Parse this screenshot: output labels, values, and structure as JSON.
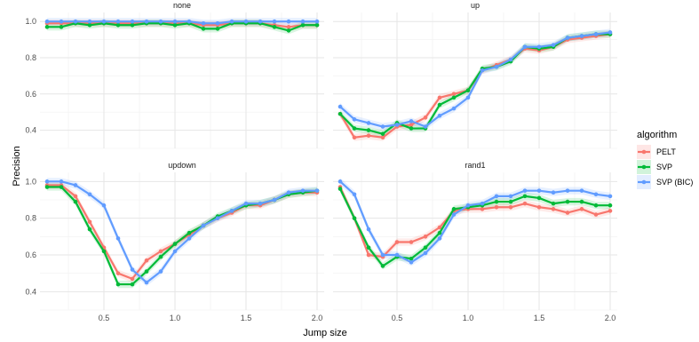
{
  "chart_data": {
    "type": "line",
    "xlabel": "Jump size",
    "ylabel": "Precision",
    "xlim": [
      0.05,
      2.05
    ],
    "x_ticks": [
      0.5,
      1.0,
      1.5,
      2.0
    ],
    "x_tick_labels": [
      "0.5",
      "1.0",
      "1.5",
      "2.0"
    ],
    "x": [
      0.1,
      0.2,
      0.3,
      0.4,
      0.5,
      0.6,
      0.7,
      0.8,
      0.9,
      1.0,
      1.1,
      1.2,
      1.3,
      1.4,
      1.5,
      1.6,
      1.7,
      1.8,
      1.9,
      2.0
    ],
    "grid": true,
    "legend": {
      "title": "algorithm",
      "position": "right",
      "entries": [
        {
          "name": "PELT",
          "color": "#f8766d"
        },
        {
          "name": "SVP",
          "color": "#00ba38"
        },
        {
          "name": "SVP (BIC)",
          "color": "#619cff"
        }
      ]
    },
    "panels": [
      {
        "title": "none",
        "ylim": [
          0.3,
          1.05
        ],
        "y_ticks": [
          0.4,
          0.6,
          0.8,
          1.0
        ],
        "y_tick_labels": [
          "0.4",
          "0.6",
          "0.8",
          "1.0"
        ],
        "series": [
          {
            "name": "PELT",
            "values": [
              0.99,
              0.99,
              0.99,
              0.99,
              0.99,
              0.99,
              0.99,
              0.99,
              0.99,
              0.99,
              0.99,
              0.98,
              0.98,
              0.99,
              0.99,
              0.99,
              0.98,
              0.97,
              0.98,
              0.98
            ]
          },
          {
            "name": "SVP",
            "values": [
              0.97,
              0.97,
              0.99,
              0.98,
              0.99,
              0.98,
              0.98,
              0.99,
              0.99,
              0.98,
              0.99,
              0.96,
              0.96,
              0.99,
              0.99,
              0.99,
              0.97,
              0.95,
              0.98,
              0.98
            ]
          },
          {
            "name": "SVP (BIC)",
            "values": [
              1.0,
              1.0,
              1.0,
              1.0,
              1.0,
              1.0,
              1.0,
              1.0,
              1.0,
              1.0,
              1.0,
              0.99,
              0.99,
              1.0,
              1.0,
              1.0,
              1.0,
              1.0,
              1.0,
              1.0
            ]
          }
        ]
      },
      {
        "title": "up",
        "ylim": [
          0.3,
          1.05
        ],
        "y_ticks": [
          0.4,
          0.6,
          0.8,
          1.0
        ],
        "y_tick_labels": [
          "0.4",
          "0.6",
          "0.8",
          "1.0"
        ],
        "series": [
          {
            "name": "PELT",
            "values": [
              0.49,
              0.36,
              0.37,
              0.36,
              0.42,
              0.43,
              0.47,
              0.58,
              0.6,
              0.62,
              0.73,
              0.76,
              0.79,
              0.85,
              0.84,
              0.86,
              0.9,
              0.91,
              0.92,
              0.93
            ]
          },
          {
            "name": "SVP",
            "values": [
              0.49,
              0.41,
              0.4,
              0.38,
              0.44,
              0.41,
              0.41,
              0.54,
              0.58,
              0.62,
              0.74,
              0.75,
              0.78,
              0.86,
              0.85,
              0.86,
              0.91,
              0.92,
              0.93,
              0.93
            ]
          },
          {
            "name": "SVP (BIC)",
            "values": [
              0.53,
              0.46,
              0.44,
              0.42,
              0.43,
              0.45,
              0.42,
              0.48,
              0.52,
              0.58,
              0.73,
              0.75,
              0.79,
              0.86,
              0.86,
              0.87,
              0.91,
              0.92,
              0.93,
              0.94
            ]
          }
        ]
      },
      {
        "title": "updown",
        "ylim": [
          0.3,
          1.05
        ],
        "y_ticks": [
          0.4,
          0.6,
          0.8,
          1.0
        ],
        "y_tick_labels": [
          "0.4",
          "0.6",
          "0.8",
          "1.0"
        ],
        "series": [
          {
            "name": "PELT",
            "values": [
              0.98,
              0.98,
              0.92,
              0.78,
              0.64,
              0.5,
              0.47,
              0.57,
              0.62,
              0.66,
              0.71,
              0.76,
              0.8,
              0.83,
              0.87,
              0.87,
              0.9,
              0.93,
              0.94,
              0.94
            ]
          },
          {
            "name": "SVP",
            "values": [
              0.97,
              0.97,
              0.89,
              0.74,
              0.62,
              0.44,
              0.44,
              0.51,
              0.59,
              0.66,
              0.72,
              0.76,
              0.81,
              0.84,
              0.87,
              0.88,
              0.9,
              0.93,
              0.94,
              0.95
            ]
          },
          {
            "name": "SVP (BIC)",
            "values": [
              1.0,
              1.0,
              0.98,
              0.93,
              0.87,
              0.69,
              0.52,
              0.45,
              0.51,
              0.62,
              0.69,
              0.76,
              0.8,
              0.84,
              0.88,
              0.88,
              0.9,
              0.94,
              0.95,
              0.95
            ]
          }
        ]
      },
      {
        "title": "rand1",
        "ylim": [
          0.3,
          1.05
        ],
        "y_ticks": [
          0.4,
          0.6,
          0.8,
          1.0
        ],
        "y_tick_labels": [
          "0.4",
          "0.6",
          "0.8",
          "1.0"
        ],
        "series": [
          {
            "name": "PELT",
            "values": [
              0.97,
              0.8,
              0.6,
              0.59,
              0.67,
              0.67,
              0.7,
              0.75,
              0.84,
              0.85,
              0.85,
              0.86,
              0.86,
              0.88,
              0.86,
              0.85,
              0.83,
              0.85,
              0.82,
              0.84
            ]
          },
          {
            "name": "SVP",
            "values": [
              0.96,
              0.8,
              0.64,
              0.54,
              0.59,
              0.58,
              0.64,
              0.72,
              0.85,
              0.86,
              0.87,
              0.89,
              0.89,
              0.92,
              0.91,
              0.88,
              0.89,
              0.89,
              0.87,
              0.87
            ]
          },
          {
            "name": "SVP (BIC)",
            "values": [
              1.0,
              0.93,
              0.74,
              0.6,
              0.6,
              0.56,
              0.61,
              0.69,
              0.82,
              0.87,
              0.88,
              0.92,
              0.92,
              0.95,
              0.95,
              0.94,
              0.95,
              0.95,
              0.93,
              0.92
            ]
          }
        ]
      }
    ]
  }
}
